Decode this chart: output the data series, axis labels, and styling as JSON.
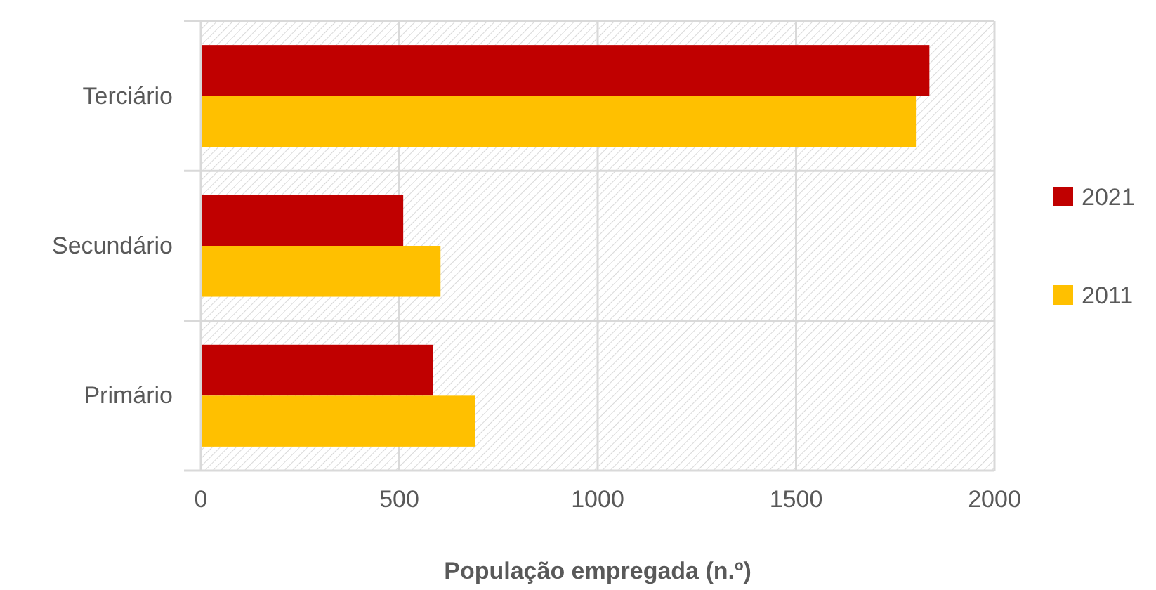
{
  "chart_data": {
    "type": "bar",
    "orientation": "horizontal",
    "categories": [
      "Terciário",
      "Secundário",
      "Primário"
    ],
    "series": [
      {
        "name": "2021",
        "color": "#c00000",
        "values": [
          1836,
          510,
          585
        ]
      },
      {
        "name": "2011",
        "color": "#ffc000",
        "values": [
          1802,
          604,
          691
        ]
      }
    ],
    "xlim": [
      0,
      2000
    ],
    "xticks": [
      0,
      500,
      1000,
      1500,
      2000
    ],
    "xlabel": "População empregada (n.º)",
    "grid": true,
    "legend": "right"
  }
}
